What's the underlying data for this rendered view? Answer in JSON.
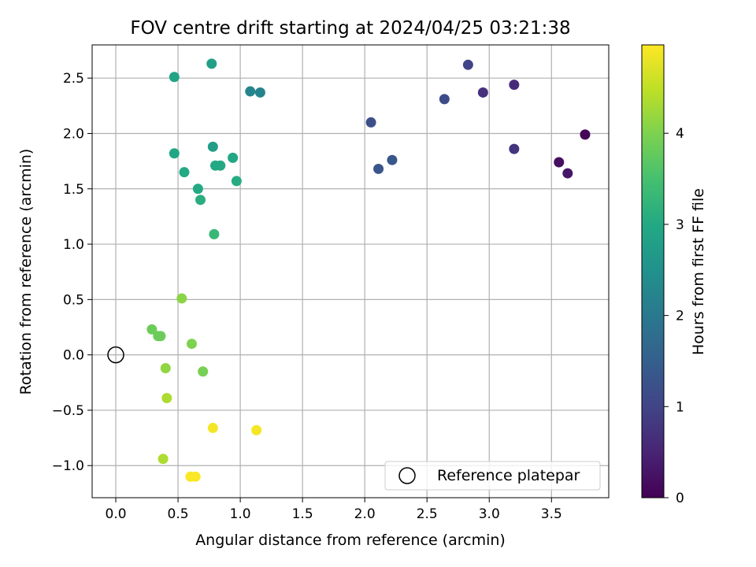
{
  "chart_data": {
    "type": "scatter",
    "title": "FOV centre drift starting at 2024/04/25 03:21:38",
    "xlabel": "Angular distance from reference (arcmin)",
    "ylabel": "Rotation from reference (arcmin)",
    "xlim": [
      -0.19,
      3.96
    ],
    "ylim": [
      -1.29,
      2.8
    ],
    "xticks": [
      0.0,
      0.5,
      1.0,
      1.5,
      2.0,
      2.5,
      3.0,
      3.5
    ],
    "xtick_labels": [
      "0.0",
      "0.5",
      "1.0",
      "1.5",
      "2.0",
      "2.5",
      "3.0",
      "3.5"
    ],
    "yticks": [
      -1.0,
      -0.5,
      0.0,
      0.5,
      1.0,
      1.5,
      2.0,
      2.5
    ],
    "ytick_labels": [
      "−1.0",
      "−0.5",
      "0.0",
      "0.5",
      "1.0",
      "1.5",
      "2.0",
      "2.5"
    ],
    "grid": true,
    "colormap": "viridis",
    "colorbar": {
      "label": "Hours from first FF file",
      "range": [
        0,
        4.97
      ],
      "ticks": [
        0,
        1,
        2,
        3,
        4
      ],
      "tick_labels": [
        "0",
        "1",
        "2",
        "3",
        "4"
      ]
    },
    "legend": {
      "location": "lower right",
      "entries": [
        {
          "label": "Reference platepar",
          "marker": "open-circle"
        }
      ]
    },
    "reference_point": {
      "x": 0.0,
      "y": 0.0
    },
    "points": [
      {
        "x": 3.77,
        "y": 1.99,
        "c": 0.05
      },
      {
        "x": 3.56,
        "y": 1.74,
        "c": 0.2
      },
      {
        "x": 3.63,
        "y": 1.64,
        "c": 0.3
      },
      {
        "x": 3.2,
        "y": 2.44,
        "c": 0.6
      },
      {
        "x": 2.95,
        "y": 2.37,
        "c": 0.7
      },
      {
        "x": 3.2,
        "y": 1.86,
        "c": 0.75
      },
      {
        "x": 2.83,
        "y": 2.62,
        "c": 1.0
      },
      {
        "x": 2.64,
        "y": 2.31,
        "c": 1.15
      },
      {
        "x": 2.05,
        "y": 2.1,
        "c": 1.2
      },
      {
        "x": 2.11,
        "y": 1.68,
        "c": 1.3
      },
      {
        "x": 2.22,
        "y": 1.76,
        "c": 1.35
      },
      {
        "x": 1.08,
        "y": 2.38,
        "c": 2.25
      },
      {
        "x": 1.16,
        "y": 2.37,
        "c": 2.2
      },
      {
        "x": 0.77,
        "y": 2.63,
        "c": 2.8
      },
      {
        "x": 0.47,
        "y": 2.51,
        "c": 2.9
      },
      {
        "x": 0.78,
        "y": 1.88,
        "c": 2.75
      },
      {
        "x": 0.47,
        "y": 1.82,
        "c": 2.95
      },
      {
        "x": 0.94,
        "y": 1.78,
        "c": 2.95
      },
      {
        "x": 0.8,
        "y": 1.71,
        "c": 3.0
      },
      {
        "x": 0.84,
        "y": 1.71,
        "c": 3.0
      },
      {
        "x": 0.55,
        "y": 1.65,
        "c": 3.0
      },
      {
        "x": 0.97,
        "y": 1.57,
        "c": 3.05
      },
      {
        "x": 0.66,
        "y": 1.5,
        "c": 3.0
      },
      {
        "x": 0.68,
        "y": 1.4,
        "c": 3.1
      },
      {
        "x": 0.79,
        "y": 1.09,
        "c": 3.3
      },
      {
        "x": 0.53,
        "y": 0.51,
        "c": 4.1
      },
      {
        "x": 0.29,
        "y": 0.23,
        "c": 3.85
      },
      {
        "x": 0.34,
        "y": 0.17,
        "c": 3.85
      },
      {
        "x": 0.36,
        "y": 0.17,
        "c": 3.85
      },
      {
        "x": 0.61,
        "y": 0.1,
        "c": 4.0
      },
      {
        "x": 0.4,
        "y": -0.12,
        "c": 4.15
      },
      {
        "x": 0.7,
        "y": -0.15,
        "c": 3.95
      },
      {
        "x": 0.41,
        "y": -0.39,
        "c": 4.35
      },
      {
        "x": 0.78,
        "y": -0.66,
        "c": 4.9
      },
      {
        "x": 1.13,
        "y": -0.68,
        "c": 4.9
      },
      {
        "x": 0.38,
        "y": -0.94,
        "c": 4.35
      },
      {
        "x": 0.6,
        "y": -1.1,
        "c": 4.95
      },
      {
        "x": 0.64,
        "y": -1.1,
        "c": 4.95
      }
    ]
  }
}
